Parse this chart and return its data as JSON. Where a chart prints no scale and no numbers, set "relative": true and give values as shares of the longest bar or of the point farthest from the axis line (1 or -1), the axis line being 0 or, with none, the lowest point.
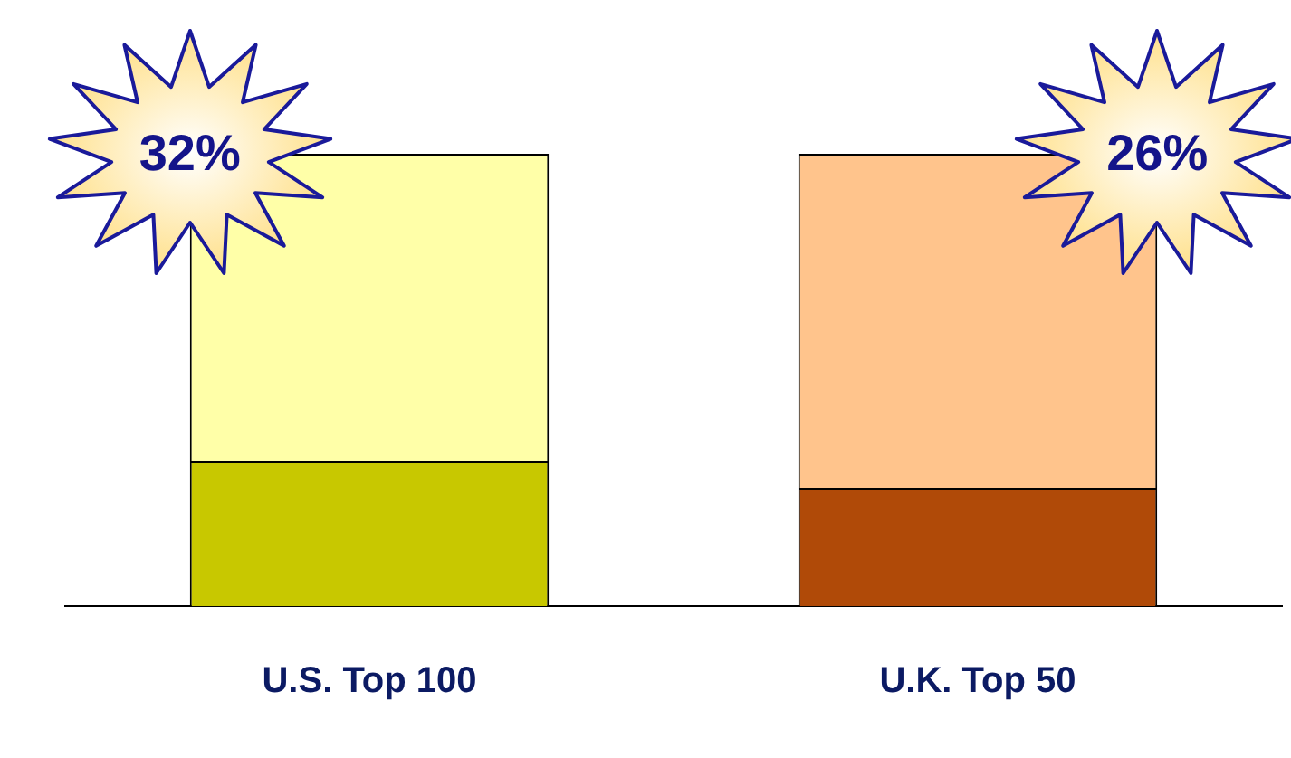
{
  "chart_data": {
    "type": "bar",
    "relative": true,
    "stacked": true,
    "categories": [
      "U.S. Top 100",
      "U.K. Top 50"
    ],
    "series": [
      {
        "colors": [
          "#c8c800",
          "#b04a08"
        ],
        "values": [
          0.32,
          0.26
        ]
      },
      {
        "colors": [
          "#ffffa8",
          "#ffc48c"
        ],
        "values": [
          0.68,
          0.74
        ]
      }
    ],
    "annotations": [
      {
        "text": "32%",
        "x": "U.S. Top 100",
        "y": 1
      },
      {
        "text": "26%",
        "x": "U.K. Top 50",
        "y": 1
      }
    ],
    "grid": false,
    "legend": false
  }
}
